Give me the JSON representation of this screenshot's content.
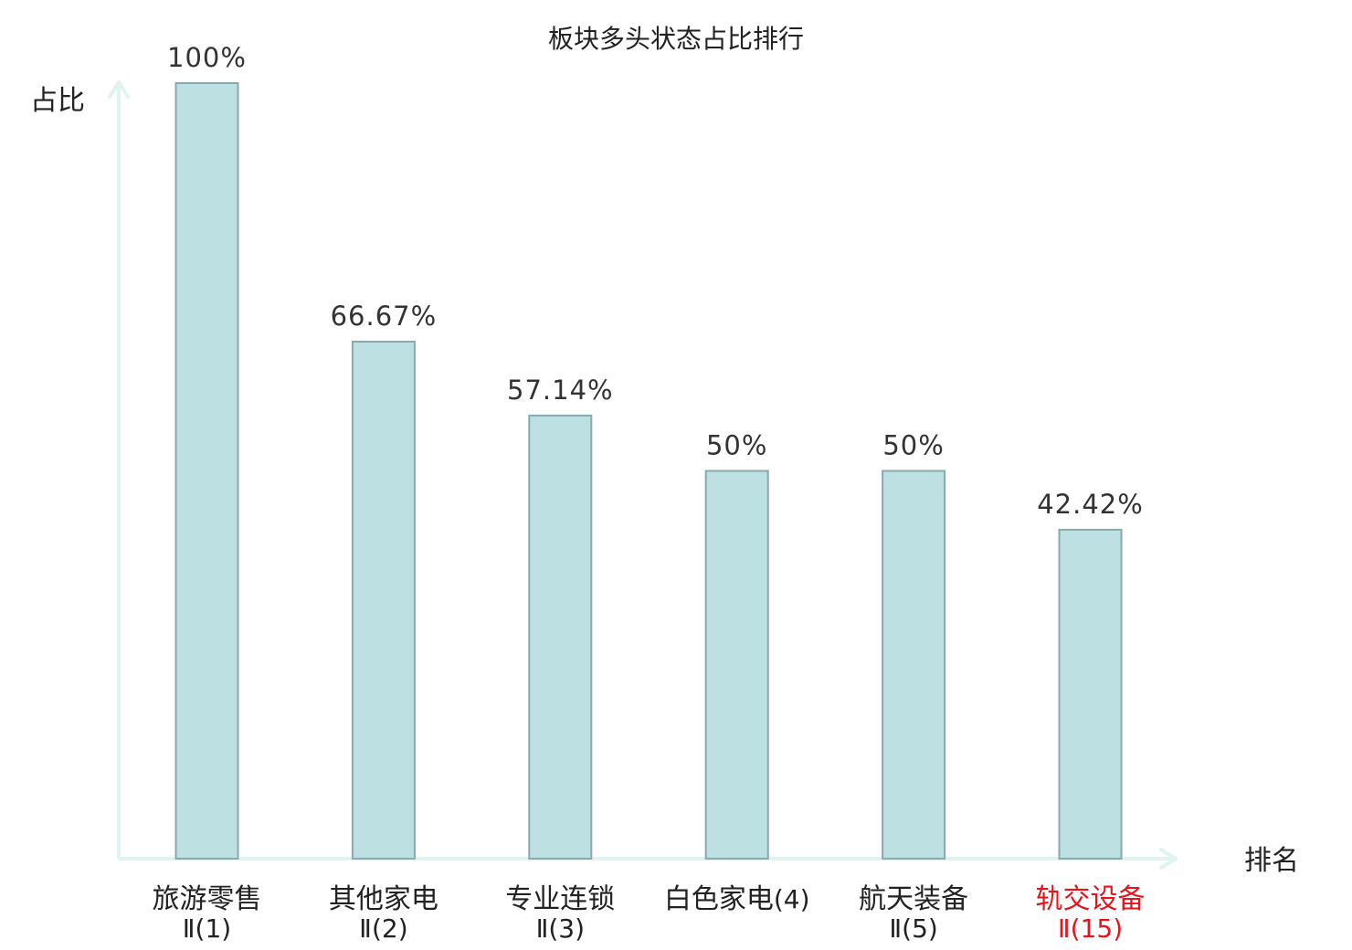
{
  "chart_data": {
    "type": "bar",
    "title": "板块多头状态占比排行",
    "ylabel": "占比",
    "xlabel": "排名",
    "ylim": [
      0,
      100
    ],
    "grid": false,
    "categories": [
      {
        "name": "旅游零售",
        "rank_text": "Ⅱ(1)",
        "highlight": false
      },
      {
        "name": "其他家电",
        "rank_text": "Ⅱ(2)",
        "highlight": false
      },
      {
        "name": "专业连锁",
        "rank_text": "Ⅱ(3)",
        "highlight": false
      },
      {
        "name": "白色家电",
        "rank_text": "(4)",
        "highlight": false
      },
      {
        "name": "航天装备",
        "rank_text": "Ⅱ(5)",
        "highlight": false
      },
      {
        "name": "轨交设备",
        "rank_text": "Ⅱ(15)",
        "highlight": true
      }
    ],
    "values": [
      100,
      66.67,
      57.14,
      50,
      50,
      42.42
    ],
    "value_labels": [
      "100%",
      "66.67%",
      "57.14%",
      "50%",
      "50%",
      "42.42%"
    ],
    "colors": {
      "bar_fill": "#bde0e3",
      "bar_stroke": "#88a9ad",
      "axis": "#dff3f0",
      "text": "#222222",
      "highlight": "#e8141c"
    }
  }
}
